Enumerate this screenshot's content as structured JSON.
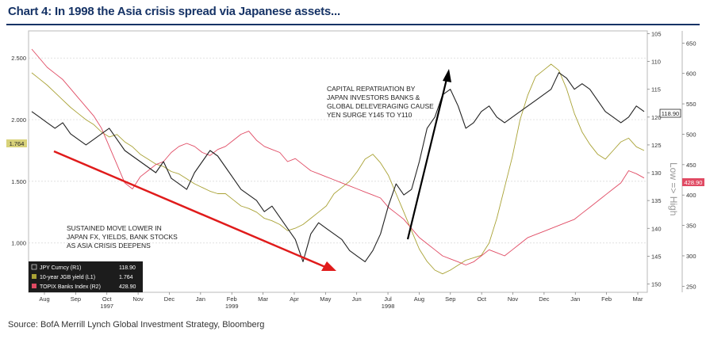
{
  "title": "Chart 4: In 1998 the Asia crisis spread via Japanese assets...",
  "source": "Source:  BofA Merrill Lynch Global Investment Strategy, Bloomberg",
  "colors": {
    "jpy": "#222222",
    "jgb": "#a9a235",
    "topix": "#e04a63",
    "arrow_red": "#e01b1b",
    "arrow_black": "#000000",
    "title": "#163366"
  },
  "chart_data": {
    "type": "line",
    "x_ticks": [
      "Aug",
      "Sep",
      "Oct",
      "Nov",
      "Dec",
      "Jan",
      "Feb",
      "Mar",
      "Apr",
      "May",
      "Jun",
      "Jul",
      "Aug",
      "Sep",
      "Oct",
      "Nov",
      "Dec",
      "Jan",
      "Feb",
      "Mar"
    ],
    "x_year_labels": [
      {
        "label": "1997",
        "at": "Oct"
      },
      {
        "label": "1998",
        "at": "Jul"
      },
      {
        "label": "1999",
        "at": "Feb"
      }
    ],
    "axes": {
      "left": {
        "ticks": [
          "2.500",
          "2.000",
          "1.500",
          "1.000"
        ],
        "range": [
          0.6,
          2.72
        ]
      },
      "right1": {
        "label": "Low => High",
        "inverted": true,
        "ticks": [
          "105",
          "110",
          "115",
          "120",
          "125",
          "130",
          "135",
          "140",
          "145",
          "150"
        ],
        "range": [
          104.5,
          151.5
        ]
      },
      "right2": {
        "ticks": [
          "650",
          "600",
          "550",
          "500",
          "450",
          "400",
          "350",
          "300",
          "250"
        ],
        "range": [
          240,
          670
        ]
      }
    },
    "series": [
      {
        "name": "JPY Curncy (R1)",
        "last": "118.90",
        "axis": "right1",
        "values": [
          119,
          120,
          121,
          122,
          121,
          123,
          124,
          125,
          124,
          123,
          122,
          124,
          126,
          127,
          128,
          129,
          130,
          128,
          131,
          132,
          133,
          130,
          128,
          126,
          127,
          129,
          131,
          133,
          134,
          135,
          137,
          136,
          138,
          140,
          142,
          146,
          141,
          139,
          140,
          141,
          142,
          144,
          145,
          146,
          144,
          141,
          136,
          132,
          134,
          133,
          128,
          122,
          120,
          116,
          115,
          118,
          122,
          121,
          119,
          118,
          120,
          121,
          120,
          119,
          118,
          117,
          116,
          115,
          112,
          113,
          115,
          114,
          115,
          117,
          119,
          120,
          121,
          120,
          118,
          119
        ]
      },
      {
        "name": "10-year JGB yield (L1)",
        "last": "1.764",
        "axis": "left",
        "values": [
          2.38,
          2.33,
          2.28,
          2.22,
          2.16,
          2.1,
          2.05,
          2.0,
          1.96,
          1.9,
          1.86,
          1.88,
          1.82,
          1.78,
          1.72,
          1.68,
          1.64,
          1.62,
          1.58,
          1.56,
          1.52,
          1.48,
          1.45,
          1.42,
          1.4,
          1.4,
          1.35,
          1.3,
          1.28,
          1.25,
          1.2,
          1.18,
          1.15,
          1.1,
          1.12,
          1.15,
          1.2,
          1.25,
          1.3,
          1.4,
          1.45,
          1.5,
          1.58,
          1.68,
          1.72,
          1.65,
          1.55,
          1.4,
          1.25,
          1.1,
          0.95,
          0.85,
          0.78,
          0.75,
          0.78,
          0.82,
          0.86,
          0.88,
          0.9,
          1.0,
          1.2,
          1.45,
          1.7,
          2.0,
          2.2,
          2.35,
          2.4,
          2.45,
          2.4,
          2.25,
          2.05,
          1.9,
          1.8,
          1.72,
          1.68,
          1.75,
          1.82,
          1.85,
          1.78,
          1.75
        ]
      },
      {
        "name": "TOPIX Banks Index (R2)",
        "last": "428.90",
        "axis": "right2",
        "values": [
          640,
          625,
          610,
          600,
          590,
          575,
          560,
          545,
          530,
          510,
          480,
          450,
          420,
          410,
          430,
          440,
          450,
          455,
          470,
          480,
          485,
          480,
          470,
          465,
          475,
          480,
          490,
          500,
          505,
          490,
          480,
          475,
          470,
          455,
          460,
          450,
          440,
          435,
          430,
          425,
          420,
          415,
          410,
          405,
          400,
          395,
          380,
          370,
          360,
          345,
          330,
          320,
          310,
          300,
          295,
          290,
          285,
          290,
          300,
          310,
          305,
          300,
          310,
          320,
          330,
          335,
          340,
          345,
          350,
          355,
          360,
          370,
          380,
          390,
          400,
          410,
          420,
          440,
          435,
          428
        ]
      }
    ]
  },
  "annotations": {
    "left_note": [
      "SUSTAINED MOVE LOWER IN",
      "JAPAN FX, YIELDS, BANK STOCKS",
      "AS ASIA CRISIS DEEPENS"
    ],
    "right_note": [
      "CAPITAL REPATRIATION BY",
      "JAPAN INVESTORS BANKS &",
      "GLOBAL DELEVERAGING CAUSE",
      "YEN SURGE Y145 TO Y110"
    ]
  }
}
